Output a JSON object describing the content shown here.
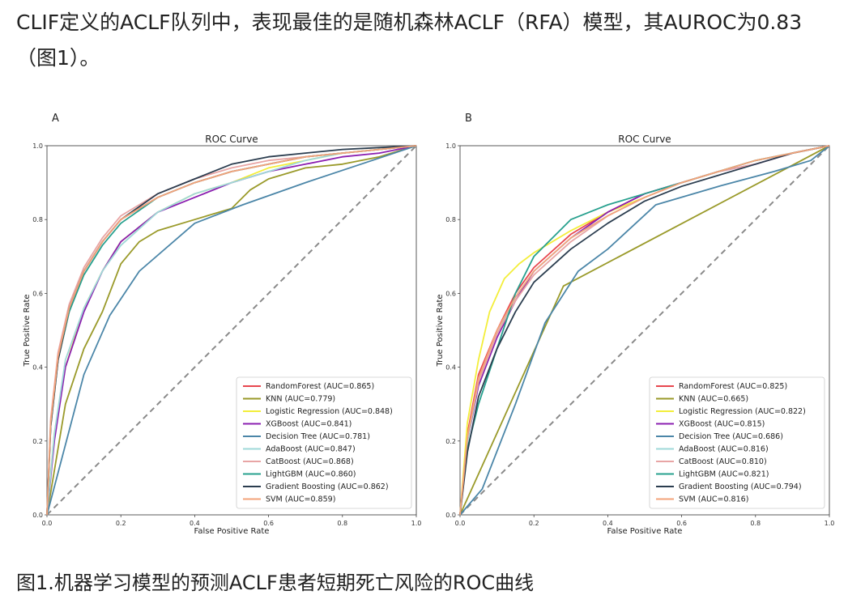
{
  "article": {
    "paragraph": "CLIF定义的ACLF队列中，表现最佳的是随机森林ACLF（RFA）模型，其AUROC为0.83（图1）。",
    "caption": "图1.机器学习模型的预测ACLF患者短期死亡风险的ROC曲线"
  },
  "chart_data": [
    {
      "panel": "A",
      "type": "line",
      "title": "ROC Curve",
      "xlabel": "False Positive Rate",
      "ylabel": "True Positive Rate",
      "xlim": [
        0,
        1
      ],
      "ylim": [
        0,
        1
      ],
      "ticks": [
        "0.0",
        "0.2",
        "0.4",
        "0.6",
        "0.8",
        "1.0"
      ],
      "legend_position": "lower-right",
      "series": [
        {
          "name": "RandomForest (AUC=0.865)",
          "color": "#e8474f",
          "x": [
            0,
            0.01,
            0.03,
            0.06,
            0.1,
            0.15,
            0.2,
            0.3,
            0.4,
            0.5,
            0.6,
            0.7,
            0.8,
            0.9,
            1
          ],
          "y": [
            0,
            0.25,
            0.42,
            0.55,
            0.66,
            0.74,
            0.8,
            0.86,
            0.9,
            0.93,
            0.95,
            0.97,
            0.98,
            0.99,
            1
          ]
        },
        {
          "name": "KNN (AUC=0.779)",
          "color": "#9a9a2a",
          "x": [
            0,
            0.05,
            0.1,
            0.15,
            0.2,
            0.25,
            0.3,
            0.4,
            0.5,
            0.55,
            0.6,
            0.7,
            0.8,
            0.9,
            1
          ],
          "y": [
            0,
            0.3,
            0.45,
            0.55,
            0.68,
            0.74,
            0.77,
            0.8,
            0.83,
            0.88,
            0.91,
            0.94,
            0.95,
            0.97,
            1
          ]
        },
        {
          "name": "Logistic Regression (AUC=0.848)",
          "color": "#f3ee3a",
          "x": [
            0,
            0.02,
            0.05,
            0.1,
            0.15,
            0.2,
            0.3,
            0.4,
            0.5,
            0.6,
            0.7,
            0.8,
            0.9,
            1
          ],
          "y": [
            0,
            0.22,
            0.4,
            0.56,
            0.66,
            0.74,
            0.82,
            0.87,
            0.9,
            0.94,
            0.96,
            0.98,
            0.99,
            1
          ]
        },
        {
          "name": "XGBoost (AUC=0.841)",
          "color": "#8b1fb0",
          "x": [
            0,
            0.02,
            0.05,
            0.1,
            0.15,
            0.2,
            0.3,
            0.4,
            0.5,
            0.6,
            0.7,
            0.8,
            0.9,
            1
          ],
          "y": [
            0,
            0.2,
            0.4,
            0.55,
            0.66,
            0.74,
            0.82,
            0.86,
            0.9,
            0.93,
            0.95,
            0.97,
            0.98,
            1
          ]
        },
        {
          "name": "Decision Tree (AUC=0.781)",
          "color": "#4b86a8",
          "x": [
            0,
            0.1,
            0.17,
            0.25,
            0.4,
            0.53,
            0.7,
            0.85,
            1
          ],
          "y": [
            0,
            0.38,
            0.54,
            0.66,
            0.79,
            0.84,
            0.9,
            0.95,
            1
          ]
        },
        {
          "name": "AdaBoost (AUC=0.847)",
          "color": "#9fd8d8",
          "x": [
            0,
            0.02,
            0.05,
            0.1,
            0.15,
            0.2,
            0.3,
            0.4,
            0.5,
            0.6,
            0.7,
            0.8,
            0.9,
            1
          ],
          "y": [
            0,
            0.22,
            0.42,
            0.56,
            0.66,
            0.73,
            0.82,
            0.87,
            0.9,
            0.93,
            0.96,
            0.98,
            0.99,
            1
          ]
        },
        {
          "name": "CatBoost (AUC=0.868)",
          "color": "#e8a5a5",
          "x": [
            0,
            0.01,
            0.03,
            0.06,
            0.1,
            0.15,
            0.2,
            0.3,
            0.4,
            0.5,
            0.6,
            0.7,
            0.8,
            0.9,
            1
          ],
          "y": [
            0,
            0.26,
            0.44,
            0.57,
            0.67,
            0.75,
            0.81,
            0.87,
            0.91,
            0.94,
            0.96,
            0.97,
            0.98,
            0.99,
            1
          ]
        },
        {
          "name": "LightGBM (AUC=0.860)",
          "color": "#27a08e",
          "x": [
            0,
            0.01,
            0.03,
            0.06,
            0.1,
            0.15,
            0.2,
            0.3,
            0.4,
            0.5,
            0.6,
            0.7,
            0.8,
            0.9,
            1
          ],
          "y": [
            0,
            0.24,
            0.42,
            0.55,
            0.65,
            0.73,
            0.79,
            0.86,
            0.9,
            0.93,
            0.95,
            0.97,
            0.98,
            0.99,
            1
          ]
        },
        {
          "name": "Gradient Boosting (AUC=0.862)",
          "color": "#2b3d4f",
          "x": [
            0,
            0.01,
            0.03,
            0.06,
            0.1,
            0.15,
            0.2,
            0.3,
            0.4,
            0.5,
            0.6,
            0.7,
            0.8,
            0.9,
            1
          ],
          "y": [
            0,
            0.24,
            0.42,
            0.56,
            0.66,
            0.74,
            0.8,
            0.87,
            0.91,
            0.95,
            0.97,
            0.98,
            0.99,
            0.995,
            1
          ]
        },
        {
          "name": "SVM (AUC=0.859)",
          "color": "#f3a37a",
          "x": [
            0,
            0.01,
            0.03,
            0.06,
            0.1,
            0.15,
            0.2,
            0.3,
            0.4,
            0.5,
            0.6,
            0.7,
            0.8,
            0.9,
            1
          ],
          "y": [
            0,
            0.25,
            0.43,
            0.56,
            0.66,
            0.74,
            0.8,
            0.86,
            0.9,
            0.93,
            0.95,
            0.97,
            0.98,
            0.99,
            1
          ]
        }
      ]
    },
    {
      "panel": "B",
      "type": "line",
      "title": "ROC Curve",
      "xlabel": "False Positive Rate",
      "ylabel": "True Positive Rate",
      "xlim": [
        0,
        1
      ],
      "ylim": [
        0,
        1
      ],
      "ticks": [
        "0.0",
        "0.2",
        "0.4",
        "0.6",
        "0.8",
        "1.0"
      ],
      "legend_position": "lower-right",
      "series": [
        {
          "name": "RandomForest (AUC=0.825)",
          "color": "#e8474f",
          "x": [
            0,
            0.02,
            0.05,
            0.1,
            0.15,
            0.2,
            0.3,
            0.4,
            0.5,
            0.6,
            0.7,
            0.8,
            0.9,
            1
          ],
          "y": [
            0,
            0.22,
            0.38,
            0.5,
            0.6,
            0.67,
            0.76,
            0.82,
            0.87,
            0.9,
            0.93,
            0.96,
            0.98,
            1
          ]
        },
        {
          "name": "KNN (AUC=0.665)",
          "color": "#9a9a2a",
          "x": [
            0,
            0.28,
            1
          ],
          "y": [
            0,
            0.62,
            1
          ]
        },
        {
          "name": "Logistic Regression (AUC=0.822)",
          "color": "#f3ee3a",
          "x": [
            0,
            0.02,
            0.05,
            0.08,
            0.12,
            0.16,
            0.2,
            0.3,
            0.4,
            0.5,
            0.6,
            0.7,
            0.8,
            0.9,
            1
          ],
          "y": [
            0,
            0.25,
            0.42,
            0.55,
            0.64,
            0.68,
            0.71,
            0.77,
            0.82,
            0.86,
            0.9,
            0.93,
            0.96,
            0.98,
            1
          ]
        },
        {
          "name": "XGBoost (AUC=0.815)",
          "color": "#8b1fb0",
          "x": [
            0,
            0.02,
            0.05,
            0.1,
            0.15,
            0.2,
            0.3,
            0.4,
            0.5,
            0.6,
            0.7,
            0.8,
            0.9,
            1
          ],
          "y": [
            0,
            0.2,
            0.35,
            0.48,
            0.58,
            0.66,
            0.75,
            0.82,
            0.87,
            0.9,
            0.93,
            0.95,
            0.98,
            1
          ]
        },
        {
          "name": "Decision Tree (AUC=0.686)",
          "color": "#4b86a8",
          "x": [
            0,
            0.06,
            0.15,
            0.23,
            0.32,
            0.4,
            0.53,
            0.7,
            0.85,
            0.95,
            1
          ],
          "y": [
            0,
            0.07,
            0.3,
            0.52,
            0.66,
            0.72,
            0.84,
            0.89,
            0.93,
            0.96,
            1
          ]
        },
        {
          "name": "AdaBoost (AUC=0.816)",
          "color": "#9fd8d8",
          "x": [
            0,
            0.02,
            0.05,
            0.1,
            0.15,
            0.2,
            0.3,
            0.4,
            0.5,
            0.6,
            0.7,
            0.8,
            0.9,
            1
          ],
          "y": [
            0,
            0.2,
            0.36,
            0.49,
            0.59,
            0.66,
            0.75,
            0.81,
            0.86,
            0.9,
            0.93,
            0.96,
            0.98,
            1
          ]
        },
        {
          "name": "CatBoost (AUC=0.810)",
          "color": "#e8a5a5",
          "x": [
            0,
            0.02,
            0.05,
            0.1,
            0.15,
            0.2,
            0.3,
            0.4,
            0.5,
            0.6,
            0.7,
            0.8,
            0.9,
            1
          ],
          "y": [
            0,
            0.21,
            0.36,
            0.49,
            0.58,
            0.65,
            0.74,
            0.81,
            0.86,
            0.9,
            0.93,
            0.95,
            0.98,
            1
          ]
        },
        {
          "name": "LightGBM (AUC=0.821)",
          "color": "#27a08e",
          "x": [
            0,
            0.02,
            0.05,
            0.1,
            0.15,
            0.2,
            0.3,
            0.4,
            0.5,
            0.6,
            0.7,
            0.8,
            0.9,
            1
          ],
          "y": [
            0,
            0.18,
            0.3,
            0.45,
            0.6,
            0.7,
            0.8,
            0.84,
            0.87,
            0.9,
            0.93,
            0.96,
            0.98,
            1
          ]
        },
        {
          "name": "Gradient Boosting (AUC=0.794)",
          "color": "#2b3d4f",
          "x": [
            0,
            0.02,
            0.05,
            0.1,
            0.15,
            0.2,
            0.3,
            0.4,
            0.5,
            0.6,
            0.7,
            0.8,
            0.9,
            1
          ],
          "y": [
            0,
            0.17,
            0.32,
            0.45,
            0.55,
            0.63,
            0.72,
            0.79,
            0.85,
            0.89,
            0.92,
            0.95,
            0.98,
            1
          ]
        },
        {
          "name": "SVM (AUC=0.816)",
          "color": "#f3a37a",
          "x": [
            0,
            0.02,
            0.05,
            0.1,
            0.15,
            0.2,
            0.3,
            0.4,
            0.5,
            0.6,
            0.7,
            0.8,
            0.9,
            1
          ],
          "y": [
            0,
            0.21,
            0.37,
            0.5,
            0.59,
            0.66,
            0.75,
            0.81,
            0.86,
            0.9,
            0.93,
            0.96,
            0.98,
            1
          ]
        }
      ]
    }
  ]
}
